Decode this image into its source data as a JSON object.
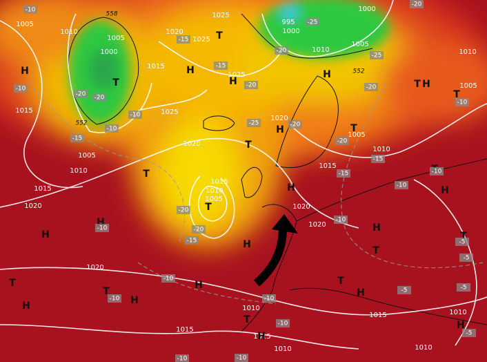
{
  "isobar_labels": [
    "1005",
    "1010",
    "1005",
    "1000",
    "1020",
    "1025",
    "1025",
    "1015",
    "1025",
    "1025",
    "1015",
    "1005",
    "1010",
    "1020",
    "1015",
    "1020",
    "1015",
    "1010",
    "1005",
    "1020",
    "1005",
    "1010",
    "1015",
    "995",
    "1000",
    "1010",
    "1000",
    "1005",
    "1010",
    "1005",
    "1020",
    "1020",
    "1020",
    "1010",
    "1015",
    "1015",
    "1015",
    "1010",
    "1010",
    "1010"
  ],
  "pressure_centers": [
    "H",
    "H",
    "T",
    "T",
    "H",
    "H",
    "T",
    "H",
    "T",
    "T",
    "H",
    "T",
    "H",
    "H",
    "H",
    "H",
    "T",
    "T",
    "T",
    "H",
    "T",
    "T",
    "H",
    "T",
    "H",
    "T",
    "H",
    "H",
    "T",
    "H",
    "T",
    "H",
    "H"
  ],
  "temperature_labels": [
    "-10",
    "-15",
    "-20",
    "-20",
    "-15",
    "-20",
    "-15",
    "-10",
    "-10",
    "-10",
    "-25",
    "-20",
    "-20",
    "-15",
    "-15",
    "-10",
    "-10",
    "-20",
    "-20",
    "-15",
    "-10",
    "-10",
    "-10",
    "-10",
    "-10",
    "-10",
    "-5",
    "-5",
    "-5",
    "-5",
    "-10",
    "-10",
    "-20",
    "-25",
    "-20",
    "-25",
    "-20",
    "-10",
    "-5"
  ],
  "height_labels": [
    "558",
    "552",
    "552"
  ]
}
